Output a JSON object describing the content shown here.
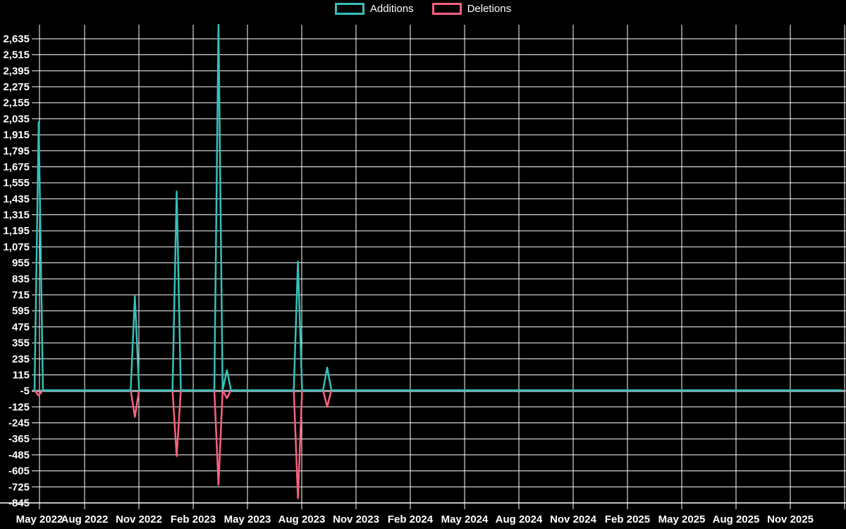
{
  "legend": {
    "items": [
      {
        "label": "Additions",
        "color": "#35c0ba"
      },
      {
        "label": "Deletions",
        "color": "#fb607f"
      }
    ]
  },
  "colors": {
    "background": "#000000",
    "grid": "#ffffff",
    "zero_line": "#a9aeb3",
    "text": "#ffffff",
    "additions": "#35c0ba",
    "deletions": "#fb607f"
  },
  "chart_data": {
    "type": "line",
    "title": "",
    "xlabel": "",
    "ylabel": "",
    "legend_position": "top-center",
    "grid": "on",
    "y_axis": {
      "min": -845,
      "max": 2635,
      "step": 120,
      "tick_labels": [
        "2,635",
        "2,515",
        "2,395",
        "2,275",
        "2,155",
        "2,035",
        "1,915",
        "1,795",
        "1,675",
        "1,555",
        "1,435",
        "1,315",
        "1,195",
        "1,075",
        "955",
        "835",
        "715",
        "595",
        "475",
        "355",
        "235",
        "115",
        "-5",
        "-125",
        "-245",
        "-365",
        "-485",
        "-605",
        "-725",
        "-845"
      ]
    },
    "x_axis": {
      "tick_labels": [
        "May 2022",
        "Aug 2022",
        "Nov 2022",
        "Feb 2023",
        "May 2023",
        "Aug 2023",
        "Nov 2023",
        "Feb 2024",
        "May 2024",
        "Aug 2024",
        "Nov 2024",
        "Feb 2025",
        "May 2025",
        "Aug 2025",
        "Nov 2025"
      ],
      "unit": "weekly data points, quarterly ticks"
    },
    "weeks_start_approx": "2022-05-08",
    "weeks_total": 194,
    "default_value_all_other_weeks": 0,
    "series": [
      {
        "name": "Additions",
        "color": "#35c0ba",
        "spikes": [
          {
            "week_index": 1,
            "date_approx": "2022-05-15",
            "value": 2010
          },
          {
            "week_index": 24,
            "date_approx": "2022-10-23",
            "value": 705
          },
          {
            "week_index": 34,
            "date_approx": "2023-01-01",
            "value": 1490
          },
          {
            "week_index": 44,
            "date_approx": "2023-03-12",
            "value": 2740
          },
          {
            "week_index": 46,
            "date_approx": "2023-03-26",
            "value": 150
          },
          {
            "week_index": 63,
            "date_approx": "2023-07-23",
            "value": 965
          },
          {
            "week_index": 70,
            "date_approx": "2023-09-10",
            "value": 170
          }
        ]
      },
      {
        "name": "Deletions",
        "color": "#fb607f",
        "spikes": [
          {
            "week_index": 1,
            "date_approx": "2022-05-15",
            "value": -40
          },
          {
            "week_index": 24,
            "date_approx": "2022-10-23",
            "value": -200
          },
          {
            "week_index": 34,
            "date_approx": "2023-01-01",
            "value": -495
          },
          {
            "week_index": 44,
            "date_approx": "2023-03-12",
            "value": -710
          },
          {
            "week_index": 46,
            "date_approx": "2023-03-26",
            "value": -60
          },
          {
            "week_index": 63,
            "date_approx": "2023-07-23",
            "value": -810
          },
          {
            "week_index": 70,
            "date_approx": "2023-09-10",
            "value": -125
          }
        ]
      }
    ]
  }
}
